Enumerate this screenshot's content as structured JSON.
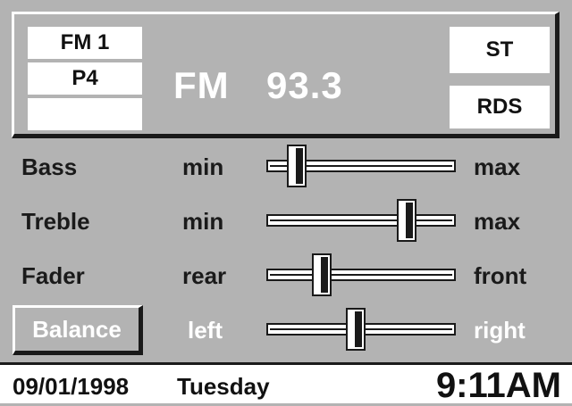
{
  "radio": {
    "band": "FM 1",
    "preset": "P4",
    "preset_extra": "",
    "frequency_band": "FM",
    "frequency": "93.3",
    "stereo_indicator": "ST",
    "rds_indicator": "RDS"
  },
  "sliders": [
    {
      "label": "Bass",
      "min_label": "min",
      "max_label": "max",
      "value": 0.12
    },
    {
      "label": "Treble",
      "min_label": "min",
      "max_label": "max",
      "value": 0.77
    },
    {
      "label": "Fader",
      "min_label": "rear",
      "max_label": "front",
      "value": 0.27
    },
    {
      "label": "Balance",
      "min_label": "left",
      "max_label": "right",
      "value": 0.47
    }
  ],
  "status": {
    "date": "09/01/1998",
    "day": "Tuesday",
    "time": "9:11AM"
  },
  "colors": {
    "background": "#b3b3b3",
    "text_dark": "#111111",
    "text_light": "#ffffff"
  }
}
